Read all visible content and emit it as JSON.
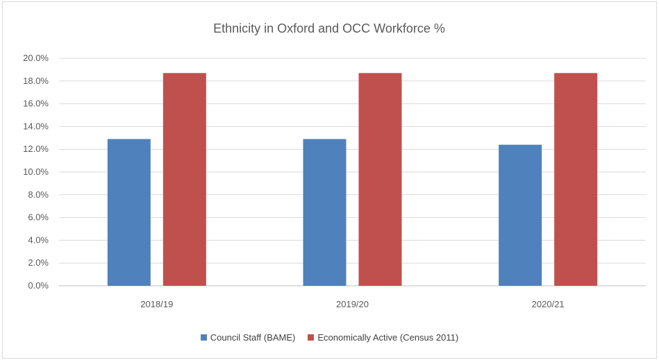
{
  "chart_data": {
    "type": "bar",
    "title": "Ethnicity in Oxford and OCC Workforce %",
    "categories": [
      "2018/19",
      "2019/20",
      "2020/21"
    ],
    "series": [
      {
        "name": "Council Staff (BAME)",
        "values": [
          12.9,
          12.9,
          12.4
        ],
        "color": "#4f81bd"
      },
      {
        "name": "Economically Active (Census 2011)",
        "values": [
          18.7,
          18.7,
          18.7
        ],
        "color": "#c0504d"
      }
    ],
    "ylim": [
      0,
      20
    ],
    "yticks": [
      "0.0%",
      "2.0%",
      "4.0%",
      "6.0%",
      "8.0%",
      "10.0%",
      "12.0%",
      "14.0%",
      "16.0%",
      "18.0%",
      "20.0%"
    ],
    "grid": true,
    "legend_position": "bottom"
  }
}
